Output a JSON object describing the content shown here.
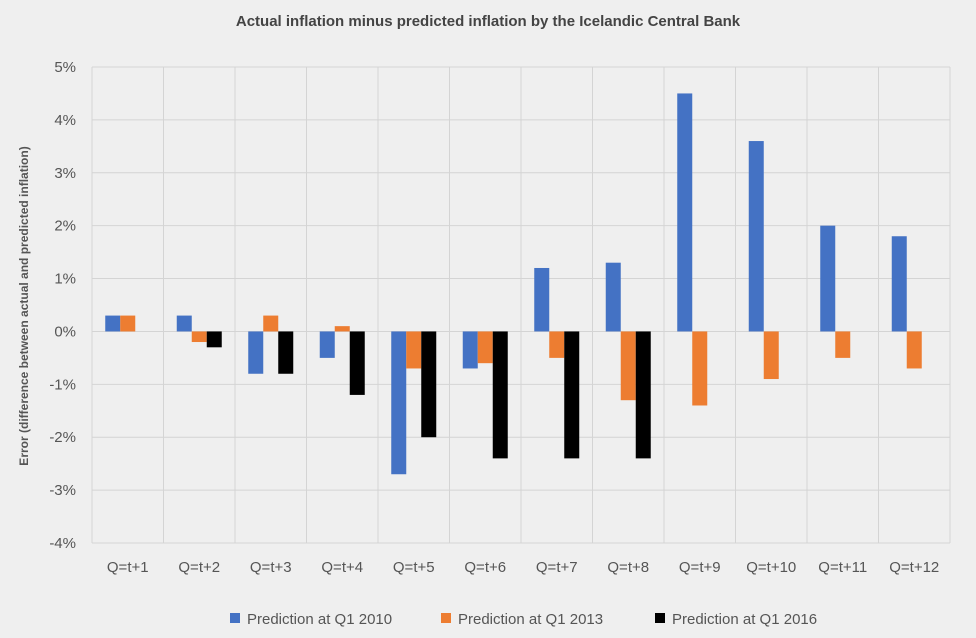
{
  "chart_data": {
    "type": "bar",
    "title": "Actual inflation minus predicted inflation by the Icelandic Central Bank",
    "xlabel": "",
    "ylabel": "Error (difference between actual and predicted inflation)",
    "ylim": [
      -4,
      5
    ],
    "yticks": [
      5,
      4,
      3,
      2,
      1,
      0,
      -1,
      -2,
      -3,
      -4
    ],
    "ytick_labels": [
      "5%",
      "4%",
      "3%",
      "2%",
      "1%",
      "0%",
      "-1%",
      "-2%",
      "-3%",
      "-4%"
    ],
    "grid": true,
    "legend_position": "bottom",
    "categories": [
      "Q=t+1",
      "Q=t+2",
      "Q=t+3",
      "Q=t+4",
      "Q=t+5",
      "Q=t+6",
      "Q=t+7",
      "Q=t+8",
      "Q=t+9",
      "Q=t+10",
      "Q=t+11",
      "Q=t+12"
    ],
    "series": [
      {
        "name": "Prediction at Q1 2010",
        "color": "#4472c4",
        "values": [
          0.3,
          0.3,
          -0.8,
          -0.5,
          -2.7,
          -0.7,
          1.2,
          1.3,
          4.5,
          3.6,
          2.0,
          1.8
        ]
      },
      {
        "name": "Prediction at Q1 2013",
        "color": "#ed7d31",
        "values": [
          0.3,
          -0.2,
          0.3,
          0.1,
          -0.7,
          -0.6,
          -0.5,
          -1.3,
          -1.4,
          -0.9,
          -0.5,
          -0.7
        ]
      },
      {
        "name": "Prediction at Q1 2016",
        "color": "#000000",
        "values": [
          null,
          -0.3,
          -0.8,
          -1.2,
          -2.0,
          -2.4,
          -2.4,
          -2.4,
          null,
          null,
          null,
          null
        ]
      }
    ]
  }
}
